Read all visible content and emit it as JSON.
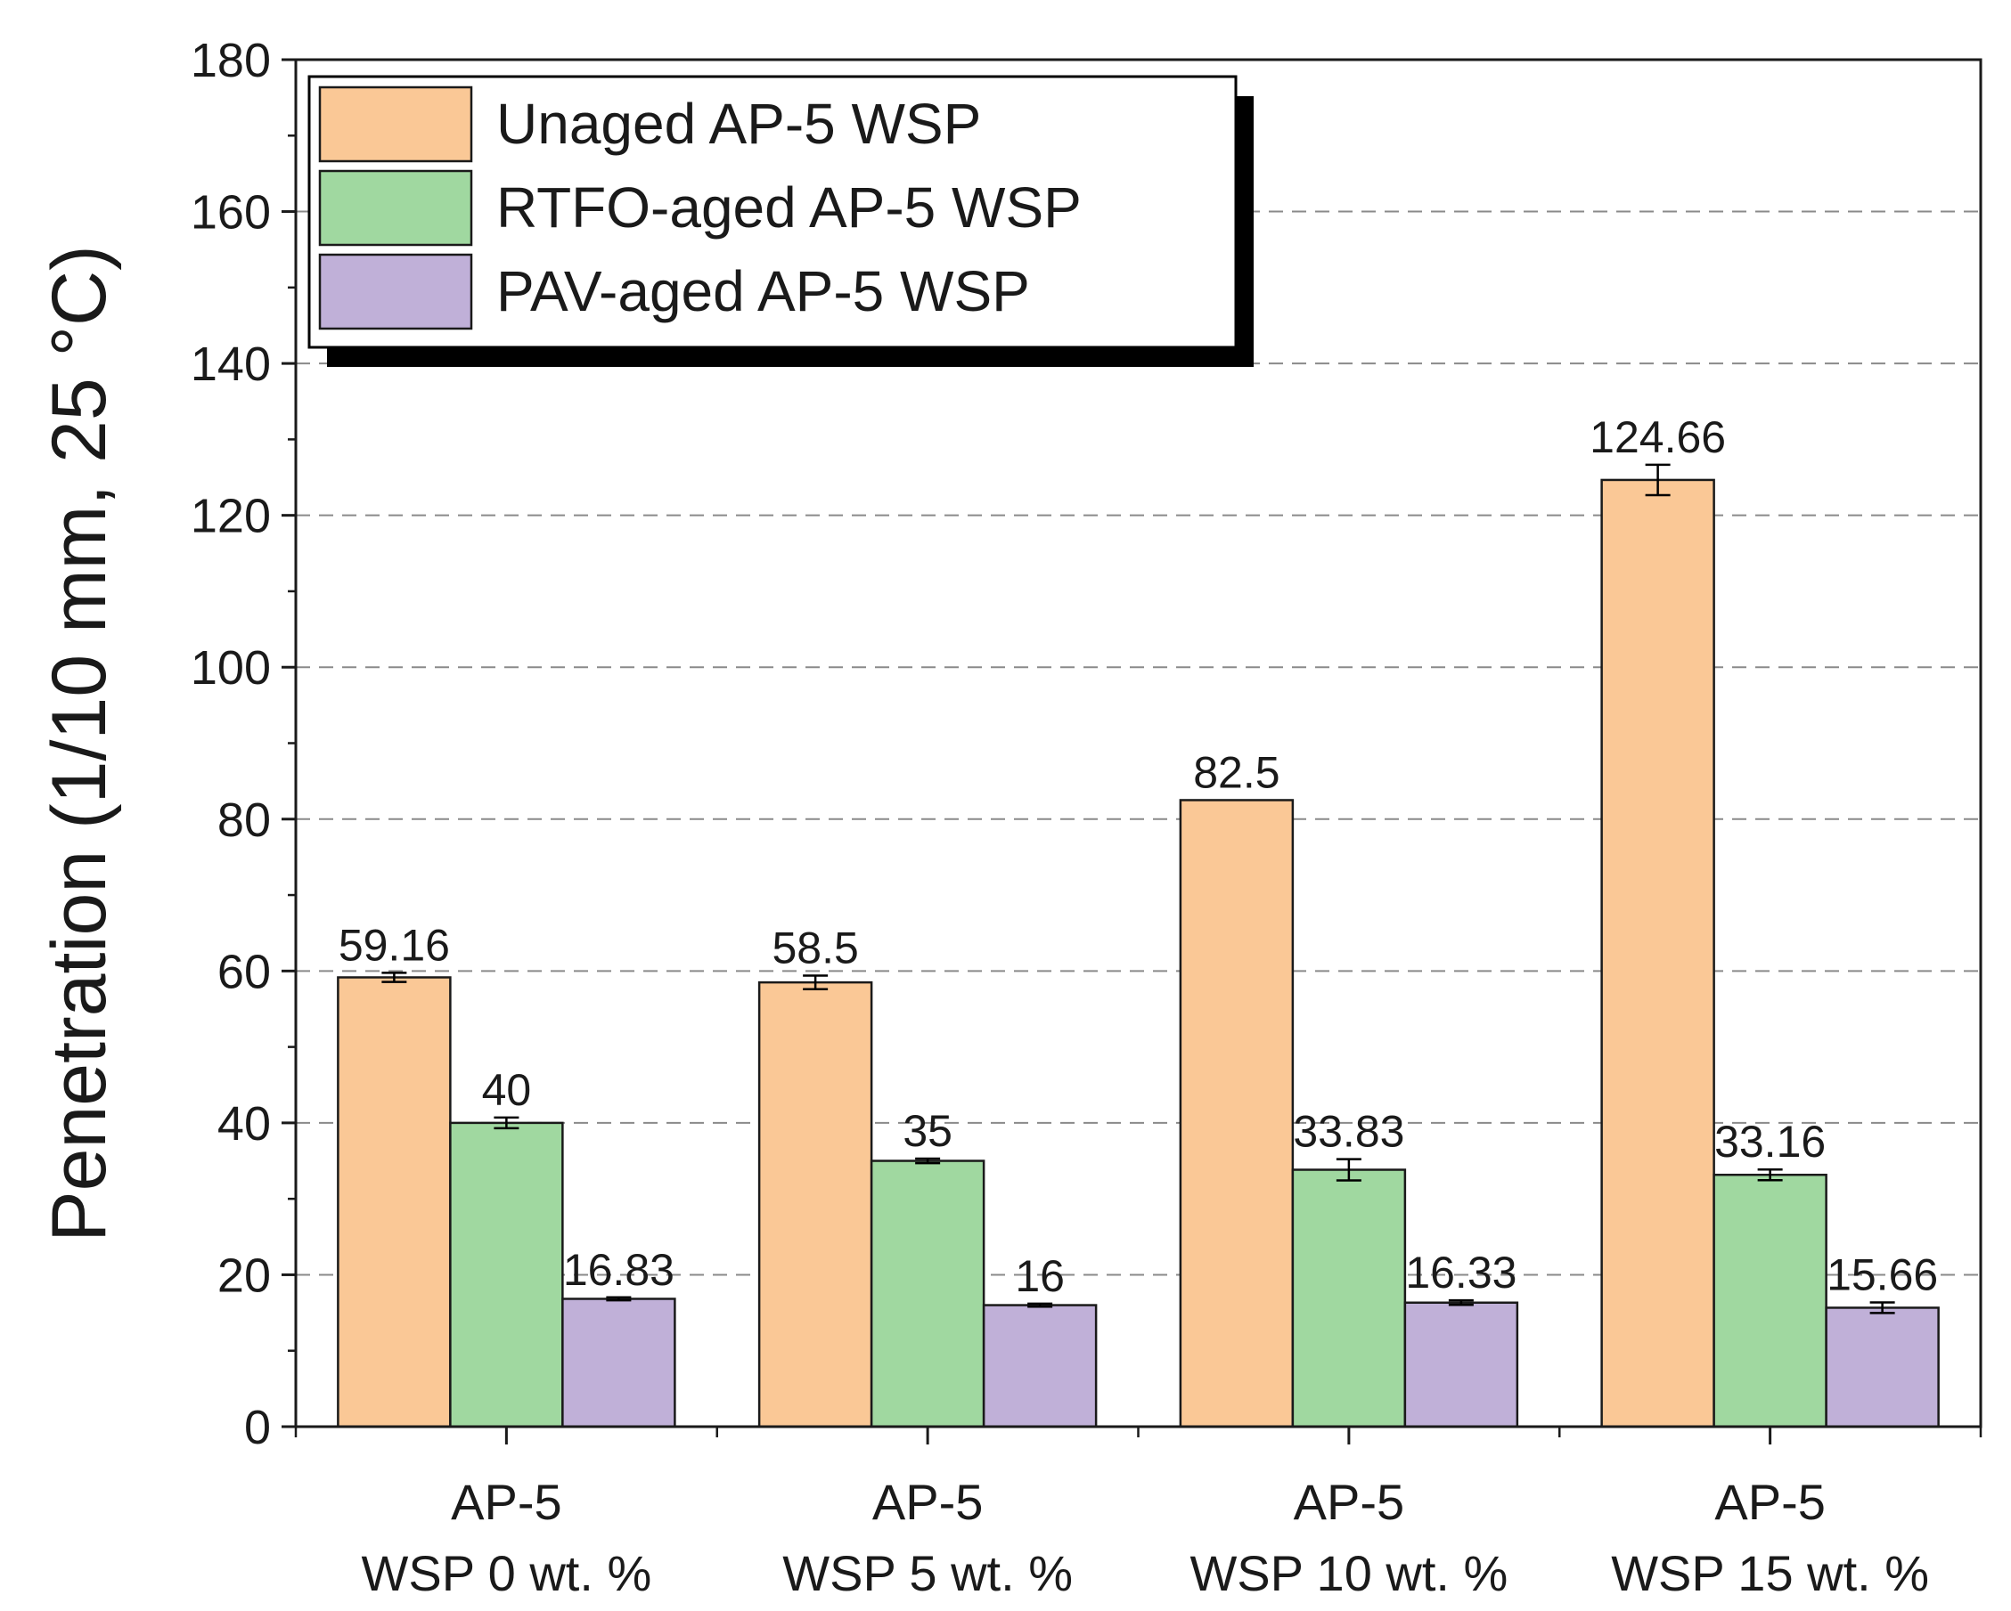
{
  "chart_data": {
    "type": "bar",
    "title": "",
    "xlabel": "",
    "ylabel": "Penetration (1/10 mm, 25 °C)",
    "ylim": [
      0,
      180
    ],
    "yticks": [
      0,
      20,
      40,
      60,
      80,
      100,
      120,
      140,
      160,
      180
    ],
    "grid": "horizontal dashed",
    "legend_position": "top-left",
    "categories": [
      [
        "AP-5",
        "WSP 0 wt. %"
      ],
      [
        "AP-5",
        "WSP 5 wt. %"
      ],
      [
        "AP-5",
        "WSP 10 wt. %"
      ],
      [
        "AP-5",
        "WSP 15 wt. %"
      ]
    ],
    "series": [
      {
        "name": "Unaged AP-5 WSP",
        "color": "#FAC896",
        "values": [
          59.16,
          58.5,
          82.5,
          124.66
        ],
        "labels": [
          "59.16",
          "58.5",
          "82.5",
          "124.66"
        ],
        "errors": [
          0.6,
          0.9,
          0,
          2.0
        ]
      },
      {
        "name": "RTFO-aged AP-5 WSP",
        "color": "#A0D8A0",
        "values": [
          40,
          35,
          33.83,
          33.16
        ],
        "labels": [
          "40",
          "35",
          "33.83",
          "33.16"
        ],
        "errors": [
          0.7,
          0.3,
          1.4,
          0.7
        ]
      },
      {
        "name": "PAV-aged AP-5 WSP",
        "color": "#C0B0D8",
        "values": [
          16.83,
          16,
          16.33,
          15.66
        ],
        "labels": [
          "16.83",
          "16",
          "16.33",
          "15.66"
        ],
        "errors": [
          0.2,
          0.2,
          0.3,
          0.7
        ]
      }
    ]
  }
}
